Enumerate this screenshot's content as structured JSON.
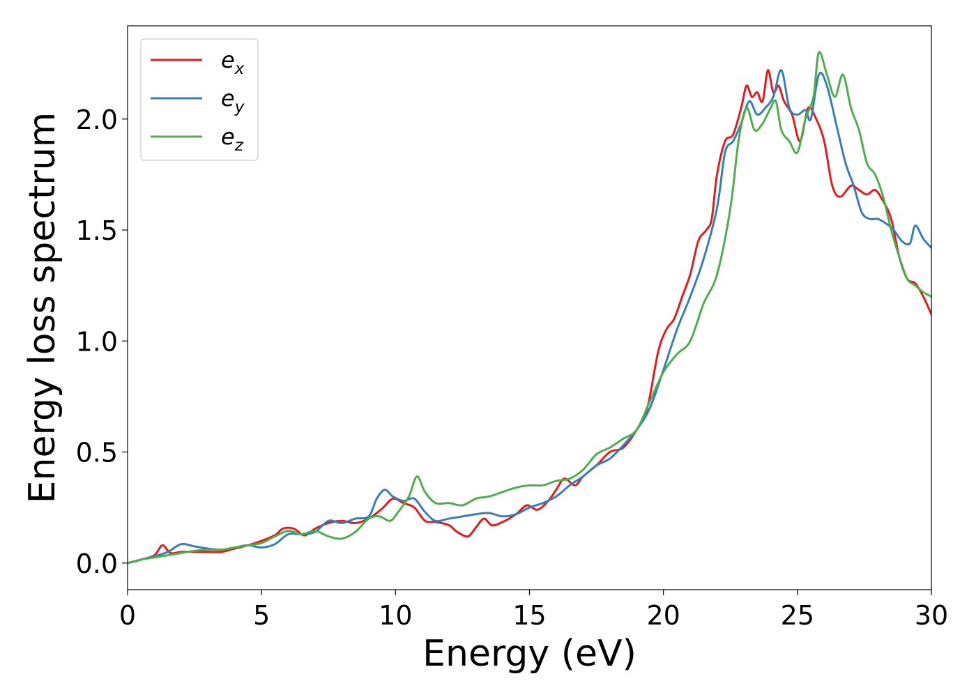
{
  "chart_data": {
    "type": "line",
    "title": "",
    "xlabel": "Energy (eV)",
    "ylabel": "Energy loss spectrum",
    "xlim": [
      0,
      30
    ],
    "ylim": [
      -0.12,
      2.42
    ],
    "xticks": [
      0,
      5,
      10,
      15,
      20,
      25,
      30
    ],
    "xtick_labels": [
      "0",
      "5",
      "10",
      "15",
      "20",
      "25",
      "30"
    ],
    "yticks": [
      0.0,
      0.5,
      1.0,
      1.5,
      2.0
    ],
    "ytick_labels": [
      "0.0",
      "0.5",
      "1.0",
      "1.5",
      "2.0"
    ],
    "grid": false,
    "legend_position": "top-left",
    "series": [
      {
        "name": "e_x",
        "label_main": "e",
        "label_sub": "x",
        "color": "#e41a1c",
        "x": [
          0,
          0.5,
          1.0,
          1.3,
          1.6,
          2.0,
          2.5,
          3.0,
          3.5,
          4.0,
          4.5,
          5.0,
          5.5,
          5.8,
          6.2,
          6.6,
          7.0,
          7.5,
          8.0,
          8.5,
          9.0,
          9.5,
          9.9,
          10.3,
          10.7,
          11.1,
          11.5,
          12.0,
          12.3,
          12.7,
          13.0,
          13.3,
          13.6,
          14.0,
          14.5,
          14.9,
          15.3,
          15.7,
          16.0,
          16.3,
          16.7,
          17.0,
          17.5,
          18.0,
          18.5,
          19.0,
          19.4,
          19.8,
          20.1,
          20.4,
          20.7,
          21.0,
          21.3,
          21.6,
          21.8,
          22.0,
          22.3,
          22.6,
          22.9,
          23.1,
          23.3,
          23.5,
          23.7,
          23.9,
          24.1,
          24.3,
          24.5,
          24.8,
          25.1,
          25.4,
          25.7,
          26.0,
          26.3,
          26.6,
          27.0,
          27.3,
          27.6,
          27.9,
          28.2,
          28.5,
          28.8,
          29.1,
          29.4,
          29.7,
          30.0
        ],
        "y": [
          0.0,
          0.015,
          0.035,
          0.08,
          0.045,
          0.05,
          0.05,
          0.05,
          0.05,
          0.065,
          0.08,
          0.1,
          0.125,
          0.155,
          0.155,
          0.125,
          0.155,
          0.18,
          0.19,
          0.18,
          0.2,
          0.245,
          0.29,
          0.27,
          0.25,
          0.19,
          0.185,
          0.17,
          0.14,
          0.12,
          0.16,
          0.2,
          0.17,
          0.185,
          0.22,
          0.26,
          0.24,
          0.28,
          0.33,
          0.38,
          0.35,
          0.39,
          0.44,
          0.5,
          0.52,
          0.6,
          0.7,
          0.95,
          1.05,
          1.1,
          1.2,
          1.3,
          1.45,
          1.5,
          1.55,
          1.75,
          1.9,
          1.93,
          2.05,
          2.15,
          2.1,
          2.12,
          2.08,
          2.22,
          2.12,
          2.15,
          2.08,
          2.02,
          1.9,
          2.05,
          2.0,
          1.9,
          1.7,
          1.65,
          1.7,
          1.68,
          1.66,
          1.68,
          1.63,
          1.55,
          1.38,
          1.28,
          1.26,
          1.2,
          1.12
        ]
      },
      {
        "name": "e_y",
        "label_main": "e",
        "label_sub": "y",
        "color": "#377eb8",
        "x": [
          0,
          0.5,
          1.0,
          1.5,
          2.0,
          2.5,
          3.0,
          3.5,
          4.0,
          4.5,
          5.0,
          5.5,
          6.0,
          6.5,
          7.0,
          7.5,
          8.0,
          8.5,
          9.0,
          9.3,
          9.6,
          9.9,
          10.3,
          10.7,
          11.1,
          11.5,
          12.0,
          12.5,
          13.0,
          13.5,
          14.0,
          14.5,
          15.0,
          15.5,
          16.0,
          16.5,
          17.0,
          17.5,
          18.0,
          18.5,
          19.0,
          19.5,
          20.0,
          20.5,
          21.0,
          21.5,
          22.0,
          22.3,
          22.6,
          22.9,
          23.2,
          23.5,
          23.8,
          24.1,
          24.4,
          24.7,
          25.0,
          25.3,
          25.5,
          25.8,
          26.1,
          26.5,
          26.8,
          27.1,
          27.4,
          27.7,
          28.0,
          28.3,
          28.6,
          28.9,
          29.2,
          29.4,
          29.7,
          30.0
        ],
        "y": [
          0.0,
          0.015,
          0.03,
          0.05,
          0.085,
          0.075,
          0.065,
          0.06,
          0.07,
          0.08,
          0.07,
          0.085,
          0.13,
          0.13,
          0.14,
          0.19,
          0.18,
          0.2,
          0.21,
          0.29,
          0.33,
          0.3,
          0.28,
          0.29,
          0.23,
          0.19,
          0.2,
          0.21,
          0.22,
          0.225,
          0.21,
          0.22,
          0.25,
          0.27,
          0.3,
          0.35,
          0.39,
          0.44,
          0.47,
          0.53,
          0.6,
          0.7,
          0.87,
          1.05,
          1.2,
          1.37,
          1.6,
          1.85,
          1.9,
          1.98,
          2.08,
          2.02,
          2.05,
          2.1,
          2.22,
          2.05,
          2.02,
          2.04,
          2.0,
          2.2,
          2.15,
          1.95,
          1.8,
          1.7,
          1.58,
          1.55,
          1.55,
          1.53,
          1.5,
          1.45,
          1.44,
          1.52,
          1.46,
          1.42
        ]
      },
      {
        "name": "e_z",
        "label_main": "e",
        "label_sub": "z",
        "color": "#4daf4a",
        "x": [
          0,
          0.5,
          1.0,
          1.5,
          2.0,
          2.5,
          3.0,
          3.5,
          4.0,
          4.5,
          5.0,
          5.5,
          6.0,
          6.5,
          7.0,
          7.5,
          8.0,
          8.5,
          9.0,
          9.4,
          9.8,
          10.1,
          10.5,
          10.8,
          11.1,
          11.5,
          12.0,
          12.5,
          13.0,
          13.5,
          14.0,
          14.5,
          15.0,
          15.5,
          16.0,
          16.5,
          17.0,
          17.5,
          18.0,
          18.5,
          19.0,
          19.5,
          20.0,
          20.5,
          21.0,
          21.5,
          22.0,
          22.5,
          22.8,
          23.1,
          23.4,
          23.7,
          24.0,
          24.2,
          24.4,
          24.7,
          25.0,
          25.3,
          25.6,
          25.8,
          26.1,
          26.4,
          26.7,
          27.0,
          27.3,
          27.6,
          27.9,
          28.2,
          28.5,
          28.8,
          29.1,
          29.4,
          29.7,
          30.0
        ],
        "y": [
          0.0,
          0.015,
          0.025,
          0.035,
          0.045,
          0.055,
          0.06,
          0.06,
          0.07,
          0.08,
          0.09,
          0.12,
          0.145,
          0.13,
          0.145,
          0.12,
          0.11,
          0.14,
          0.2,
          0.21,
          0.19,
          0.23,
          0.3,
          0.39,
          0.32,
          0.27,
          0.27,
          0.26,
          0.29,
          0.3,
          0.32,
          0.34,
          0.35,
          0.35,
          0.37,
          0.38,
          0.42,
          0.49,
          0.52,
          0.56,
          0.6,
          0.73,
          0.86,
          0.94,
          1.0,
          1.17,
          1.3,
          1.6,
          1.9,
          2.05,
          1.95,
          1.98,
          2.05,
          2.08,
          1.95,
          1.9,
          1.85,
          2.0,
          2.1,
          2.3,
          2.2,
          2.1,
          2.2,
          2.05,
          1.95,
          1.8,
          1.75,
          1.65,
          1.5,
          1.38,
          1.28,
          1.25,
          1.22,
          1.2
        ]
      }
    ]
  }
}
